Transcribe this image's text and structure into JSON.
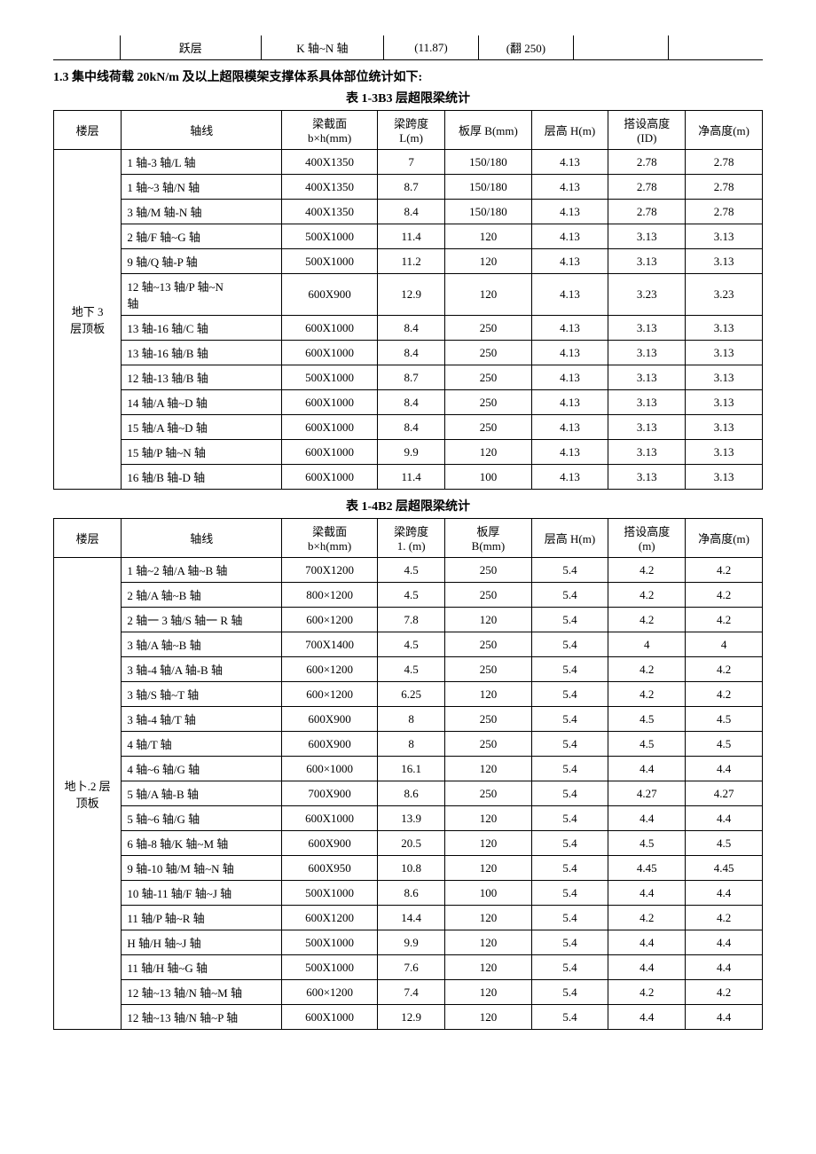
{
  "topFragment": {
    "cell2": "跃层",
    "cell3": "K 轴~N 轴",
    "cell4": "(11.87)",
    "cell5b": "(翻 250)"
  },
  "sectionTitle": "1.3 集中线荷载 20kN/m 及以上超限模架支撑体系具体部位统计如下:",
  "table1": {
    "caption": "表 1-3B3 层超限梁统计",
    "headers": {
      "floor": "楼层",
      "axis": "轴线",
      "section": "梁截面\nb×h(mm)",
      "span": "梁跨度\nL(m)",
      "slab": "板厚 B(mm)",
      "height": "层高 H(m)",
      "setup": "搭设高度\n(ID)",
      "net": "净高度(m)"
    },
    "floorLabel": "地下 3\n层顶板",
    "rows": [
      {
        "axis": "1 轴-3 轴/L 轴",
        "section": "400X1350",
        "span": "7",
        "slab": "150/180",
        "h": "4.13",
        "setup": "2.78",
        "net": "2.78"
      },
      {
        "axis": "1 轴~3 轴/N 轴",
        "section": "400X1350",
        "span": "8.7",
        "slab": "150/180",
        "h": "4.13",
        "setup": "2.78",
        "net": "2.78"
      },
      {
        "axis": "3 轴/M 轴-N 轴",
        "section": "400X1350",
        "span": "8.4",
        "slab": "150/180",
        "h": "4.13",
        "setup": "2.78",
        "net": "2.78"
      },
      {
        "axis": "2 轴/F 轴~G 轴",
        "section": "500X1000",
        "span": "11.4",
        "slab": "120",
        "h": "4.13",
        "setup": "3.13",
        "net": "3.13"
      },
      {
        "axis": "9 轴/Q 轴-P 轴",
        "section": "500X1000",
        "span": "11.2",
        "slab": "120",
        "h": "4.13",
        "setup": "3.13",
        "net": "3.13"
      },
      {
        "axis": "12 轴~13 轴/P 轴~N\n轴",
        "section": "600X900",
        "span": "12.9",
        "slab": "120",
        "h": "4.13",
        "setup": "3.23",
        "net": "3.23"
      },
      {
        "axis": "13 轴-16 轴/C 轴",
        "section": "600X1000",
        "span": "8.4",
        "slab": "250",
        "h": "4.13",
        "setup": "3.13",
        "net": "3.13"
      },
      {
        "axis": "13 轴-16 轴/B 轴",
        "section": "600X1000",
        "span": "8.4",
        "slab": "250",
        "h": "4.13",
        "setup": "3.13",
        "net": "3.13"
      },
      {
        "axis": "12 轴-13 轴/B 轴",
        "section": "500X1000",
        "span": "8.7",
        "slab": "250",
        "h": "4.13",
        "setup": "3.13",
        "net": "3.13"
      },
      {
        "axis": "14 轴/A 轴~D 轴",
        "section": "600X1000",
        "span": "8.4",
        "slab": "250",
        "h": "4.13",
        "setup": "3.13",
        "net": "3.13"
      },
      {
        "axis": "15 轴/A 轴~D 轴",
        "section": "600X1000",
        "span": "8.4",
        "slab": "250",
        "h": "4.13",
        "setup": "3.13",
        "net": "3.13"
      },
      {
        "axis": "15 轴/P 轴~N 轴",
        "section": "600X1000",
        "span": "9.9",
        "slab": "120",
        "h": "4.13",
        "setup": "3.13",
        "net": "3.13"
      },
      {
        "axis": "16 轴/B 轴-D 轴",
        "section": "600X1000",
        "span": "11.4",
        "slab": "100",
        "h": "4.13",
        "setup": "3.13",
        "net": "3.13"
      }
    ]
  },
  "table2": {
    "caption": "表 1-4B2 层超限梁统计",
    "headers": {
      "floor": "楼层",
      "axis": "轴线",
      "section": "梁截面\nb×h(mm)",
      "span": "梁跨度\n1. (m)",
      "slab": "板厚\nB(mm)",
      "height": "层高 H(m)",
      "setup": "搭设高度\n(m)",
      "net": "净高度(m)"
    },
    "floorLabel": "地卜.2 层\n顶板",
    "rows": [
      {
        "axis": "1 轴~2 轴/A 轴~B 轴",
        "section": "700X1200",
        "span": "4.5",
        "slab": "250",
        "h": "5.4",
        "setup": "4.2",
        "net": "4.2"
      },
      {
        "axis": "2 轴/A 轴~B 轴",
        "section": "800×1200",
        "span": "4.5",
        "slab": "250",
        "h": "5.4",
        "setup": "4.2",
        "net": "4.2"
      },
      {
        "axis": "2 轴一 3 轴/S 轴一 R 轴",
        "section": "600×1200",
        "span": "7.8",
        "slab": "120",
        "h": "5.4",
        "setup": "4.2",
        "net": "4.2"
      },
      {
        "axis": "3 轴/A 轴~B 轴",
        "section": "700X1400",
        "span": "4.5",
        "slab": "250",
        "h": "5.4",
        "setup": "4",
        "net": "4"
      },
      {
        "axis": "3 轴-4 轴/A 轴-B 轴",
        "section": "600×1200",
        "span": "4.5",
        "slab": "250",
        "h": "5.4",
        "setup": "4.2",
        "net": "4.2"
      },
      {
        "axis": "3 轴/S 轴~T 轴",
        "section": "600×1200",
        "span": "6.25",
        "slab": "120",
        "h": "5.4",
        "setup": "4.2",
        "net": "4.2"
      },
      {
        "axis": "3 轴-4 轴/T 轴",
        "section": "600X900",
        "span": "8",
        "slab": "250",
        "h": "5.4",
        "setup": "4.5",
        "net": "4.5"
      },
      {
        "axis": "4 轴/T 轴",
        "section": "600X900",
        "span": "8",
        "slab": "250",
        "h": "5.4",
        "setup": "4.5",
        "net": "4.5"
      },
      {
        "axis": "4 轴~6 轴/G 轴",
        "section": "600×1000",
        "span": "16.1",
        "slab": "120",
        "h": "5.4",
        "setup": "4.4",
        "net": "4.4"
      },
      {
        "axis": "5 轴/A 轴-B 轴",
        "section": "700X900",
        "span": "8.6",
        "slab": "250",
        "h": "5.4",
        "setup": "4.27",
        "net": "4.27"
      },
      {
        "axis": "5 轴~6 轴/G 轴",
        "section": "600X1000",
        "span": "13.9",
        "slab": "120",
        "h": "5.4",
        "setup": "4.4",
        "net": "4.4"
      },
      {
        "axis": "6 轴-8 轴/K 轴~M 轴",
        "section": "600X900",
        "span": "20.5",
        "slab": "120",
        "h": "5.4",
        "setup": "4.5",
        "net": "4.5"
      },
      {
        "axis": "9 轴-10 轴/M 轴~N 轴",
        "section": "600X950",
        "span": "10.8",
        "slab": "120",
        "h": "5.4",
        "setup": "4.45",
        "net": "4.45"
      },
      {
        "axis": "10 轴-11 轴/F 轴~J 轴",
        "section": "500X1000",
        "span": "8.6",
        "slab": "100",
        "h": "5.4",
        "setup": "4.4",
        "net": "4.4"
      },
      {
        "axis": "11 轴/P 轴~R 轴",
        "section": "600X1200",
        "span": "14.4",
        "slab": "120",
        "h": "5.4",
        "setup": "4.2",
        "net": "4.2"
      },
      {
        "axis": "H 轴/H 轴~J 轴",
        "section": "500X1000",
        "span": "9.9",
        "slab": "120",
        "h": "5.4",
        "setup": "4.4",
        "net": "4.4"
      },
      {
        "axis": "11 轴/H 轴~G 轴",
        "section": "500X1000",
        "span": "7.6",
        "slab": "120",
        "h": "5.4",
        "setup": "4.4",
        "net": "4.4"
      },
      {
        "axis": "12 轴~13 轴/N 轴~M 轴",
        "section": "600×1200",
        "span": "7.4",
        "slab": "120",
        "h": "5.4",
        "setup": "4.2",
        "net": "4.2"
      },
      {
        "axis": "12 轴~13 轴/N 轴~P 轴",
        "section": "600X1000",
        "span": "12.9",
        "slab": "120",
        "h": "5.4",
        "setup": "4.4",
        "net": "4.4"
      }
    ]
  }
}
